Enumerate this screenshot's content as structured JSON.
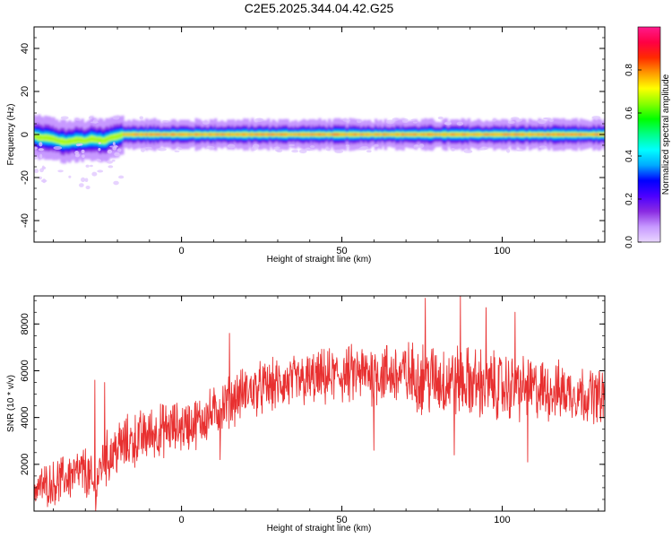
{
  "figure": {
    "title": "C2E5.2025.344.04.42.G25"
  },
  "chart_data": [
    {
      "type": "heatmap",
      "xlabel": "Height of straight line (km)",
      "ylabel": "Frequency (Hz)",
      "xlim": [
        -46,
        132
      ],
      "ylim": [
        -50,
        50
      ],
      "xticks": [
        0,
        50,
        100
      ],
      "yticks": [
        -40,
        -20,
        0,
        20,
        40
      ],
      "grid": false,
      "ridge": [
        [
          -46,
          -0.5
        ],
        [
          -44,
          -1.5
        ],
        [
          -42,
          -1.5
        ],
        [
          -40,
          -2
        ],
        [
          -38,
          -3
        ],
        [
          -36,
          -3.5
        ],
        [
          -34,
          -3
        ],
        [
          -32,
          -2.5
        ],
        [
          -30,
          -3
        ],
        [
          -28,
          -2
        ],
        [
          -26,
          -2.5
        ],
        [
          -24,
          -3
        ],
        [
          -22,
          -1.5
        ],
        [
          -20,
          -1
        ],
        [
          -18,
          0
        ],
        [
          -10,
          0
        ],
        [
          0,
          0
        ],
        [
          20,
          0
        ],
        [
          40,
          0
        ],
        [
          60,
          0
        ],
        [
          80,
          0
        ],
        [
          100,
          0
        ],
        [
          120,
          0
        ],
        [
          132,
          0
        ]
      ],
      "colorbar": {
        "label": "Normalized spectral amplitude",
        "range": [
          0,
          1
        ],
        "ticks": [
          0.0,
          0.2,
          0.4,
          0.6,
          0.8
        ],
        "colormap": [
          "#e9d6ff",
          "#c799ff",
          "#8a2be2",
          "#4b00ff",
          "#0000ff",
          "#00aaff",
          "#00ffff",
          "#00ff88",
          "#00ff00",
          "#88ff00",
          "#ffff00",
          "#ff9900",
          "#ff2a00",
          "#ff0044",
          "#ff1a8c"
        ]
      }
    },
    {
      "type": "line",
      "xlabel": "Height of straight line (km)",
      "ylabel": "SNR (10 * v/v)",
      "xlim": [
        -46,
        132
      ],
      "ylim": [
        0,
        9200
      ],
      "xticks": [
        0,
        50,
        100
      ],
      "yticks": [
        2000,
        4000,
        6000,
        8000
      ],
      "grid": false,
      "color": "#e83030",
      "trend": [
        [
          -46,
          1000
        ],
        [
          -40,
          1200
        ],
        [
          -35,
          1500
        ],
        [
          -30,
          1700
        ],
        [
          -27,
          900
        ],
        [
          -25,
          2000
        ],
        [
          -20,
          2700
        ],
        [
          -15,
          3000
        ],
        [
          -10,
          3300
        ],
        [
          -5,
          3500
        ],
        [
          0,
          3600
        ],
        [
          5,
          3800
        ],
        [
          10,
          4200
        ],
        [
          15,
          4700
        ],
        [
          20,
          5100
        ],
        [
          30,
          5400
        ],
        [
          40,
          5600
        ],
        [
          50,
          5800
        ],
        [
          60,
          5900
        ],
        [
          70,
          5800
        ],
        [
          80,
          5600
        ],
        [
          90,
          5500
        ],
        [
          100,
          5300
        ],
        [
          110,
          5200
        ],
        [
          120,
          5100
        ],
        [
          132,
          4900
        ]
      ],
      "spread": [
        [
          -46,
          700
        ],
        [
          -30,
          900
        ],
        [
          -20,
          1000
        ],
        [
          0,
          900
        ],
        [
          20,
          900
        ],
        [
          50,
          1000
        ],
        [
          80,
          1300
        ],
        [
          100,
          1200
        ],
        [
          132,
          900
        ]
      ],
      "spikes": [
        [
          -27,
          5600
        ],
        [
          -24,
          5500
        ],
        [
          15,
          7600
        ],
        [
          76,
          9100
        ],
        [
          87,
          9200
        ],
        [
          95,
          8700
        ],
        [
          104,
          8500
        ],
        [
          108,
          2100
        ],
        [
          85,
          2400
        ],
        [
          60,
          2600
        ],
        [
          12,
          2200
        ]
      ]
    }
  ]
}
